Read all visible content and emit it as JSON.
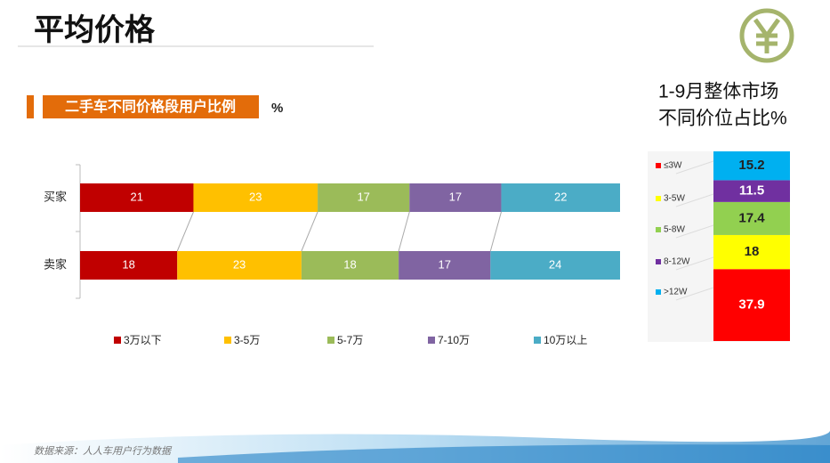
{
  "title": "平均价格",
  "source": "数据来源：人人车用户行为数据",
  "chart_data": [
    {
      "type": "hbar-stacked",
      "title": "二手车不同价格段用户比例",
      "unit": "%",
      "categories": [
        "买家",
        "卖家"
      ],
      "xlim": [
        0,
        100
      ],
      "series": [
        {
          "name": "3万以下",
          "color": "#c00000",
          "values": [
            21,
            18
          ]
        },
        {
          "name": "3-5万",
          "color": "#ffc000",
          "values": [
            23,
            23
          ]
        },
        {
          "name": "5-7万",
          "color": "#9bbb59",
          "values": [
            17,
            18
          ]
        },
        {
          "name": "7-10万",
          "color": "#8064a2",
          "values": [
            17,
            17
          ]
        },
        {
          "name": "10万以上",
          "color": "#4bacc6",
          "values": [
            22,
            24
          ]
        }
      ]
    },
    {
      "type": "vbar-stacked",
      "title": [
        "1-9月整体市场",
        "不同价位占比%"
      ],
      "categories": [
        null
      ],
      "ylim": [
        0,
        100
      ],
      "series": [
        {
          "name": "≤3W",
          "color": "#ff0000",
          "values": [
            37.9
          ]
        },
        {
          "name": "3-5W",
          "color": "#ffff00",
          "values": [
            18
          ]
        },
        {
          "name": "5-8W",
          "color": "#92d050",
          "values": [
            17.4
          ]
        },
        {
          "name": "8-12W",
          "color": "#7030a0",
          "values": [
            11.5
          ]
        },
        {
          "name": ">12W",
          "color": "#00b0f0",
          "values": [
            15.2
          ]
        }
      ]
    }
  ]
}
